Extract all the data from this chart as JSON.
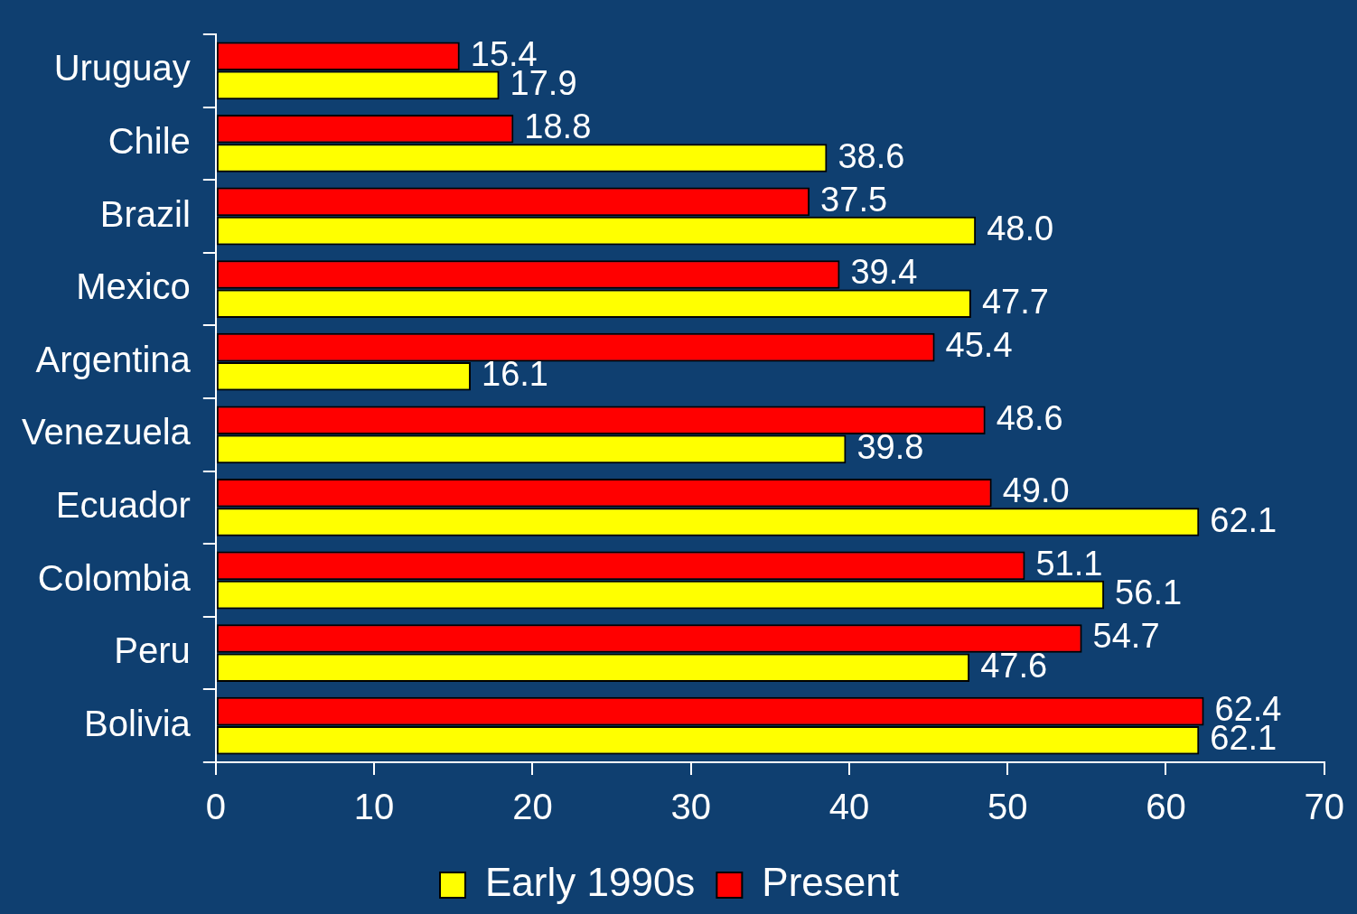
{
  "chart_data": {
    "type": "bar",
    "orientation": "horizontal",
    "categories": [
      "Uruguay",
      "Chile",
      "Brazil",
      "Mexico",
      "Argentina",
      "Venezuela",
      "Ecuador",
      "Colombia",
      "Peru",
      "Bolivia"
    ],
    "series": [
      {
        "name": "Present",
        "color": "#ff0000",
        "values": [
          15.4,
          18.8,
          37.5,
          39.4,
          45.4,
          48.6,
          49.0,
          51.1,
          54.7,
          62.4
        ],
        "value_labels": [
          "15.4",
          "18.8",
          "37.5",
          "39.4",
          "45.4",
          "48.6",
          "49.0",
          "51.1",
          "54.7",
          "62.4"
        ]
      },
      {
        "name": "Early 1990s",
        "color": "#ffff00",
        "values": [
          17.9,
          38.6,
          48.0,
          47.7,
          16.1,
          39.8,
          62.1,
          56.1,
          47.6,
          62.1
        ],
        "value_labels": [
          "17.9",
          "38.6",
          "48.0",
          "47.7",
          "16.1",
          "39.8",
          "62.1",
          "56.1",
          "47.6",
          "62.1"
        ]
      }
    ],
    "xlim": [
      0,
      70
    ],
    "xticks": [
      0,
      10,
      20,
      30,
      40,
      50,
      60,
      70
    ],
    "grid": false,
    "legend": "bottom"
  }
}
